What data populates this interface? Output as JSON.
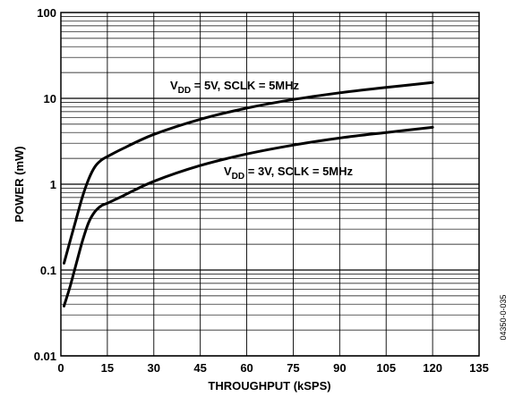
{
  "chart_data": {
    "type": "line",
    "title": "",
    "xlabel": "THROUGHPUT (kSPS)",
    "ylabel": "POWER (mW)",
    "xlim": [
      0,
      135
    ],
    "ylim": [
      0.01,
      100
    ],
    "yscale": "log",
    "grid": true,
    "x_ticks": [
      "0",
      "15",
      "30",
      "45",
      "60",
      "75",
      "90",
      "105",
      "120",
      "135"
    ],
    "y_ticks": [
      "0.01",
      "0.1",
      "1",
      "10",
      "100"
    ],
    "series": [
      {
        "name": "VDD = 5V, SCLK = 5MHz",
        "label_main": "V",
        "label_sub": "DD",
        "label_rest": " = 5V, SCLK = 5MHz",
        "x": [
          1,
          3,
          5,
          7,
          9,
          11,
          13,
          15,
          20,
          30,
          45,
          60,
          75,
          90,
          105,
          120
        ],
        "y": [
          0.12,
          0.22,
          0.4,
          0.72,
          1.15,
          1.6,
          1.9,
          2.1,
          2.6,
          3.8,
          5.7,
          7.7,
          9.7,
          11.6,
          13.4,
          15.3
        ]
      },
      {
        "name": "VDD = 3V, SCLK = 5MHz",
        "label_main": "V",
        "label_sub": "DD",
        "label_rest": " = 3V, SCLK = 5MHz",
        "x": [
          1,
          3,
          5,
          7,
          9,
          11,
          13,
          15,
          20,
          30,
          45,
          60,
          75,
          90,
          105,
          120
        ],
        "y": [
          0.038,
          0.065,
          0.12,
          0.22,
          0.36,
          0.48,
          0.56,
          0.6,
          0.73,
          1.08,
          1.65,
          2.25,
          2.85,
          3.45,
          4.0,
          4.6
        ]
      }
    ],
    "figure_id": "04350-0-035"
  }
}
